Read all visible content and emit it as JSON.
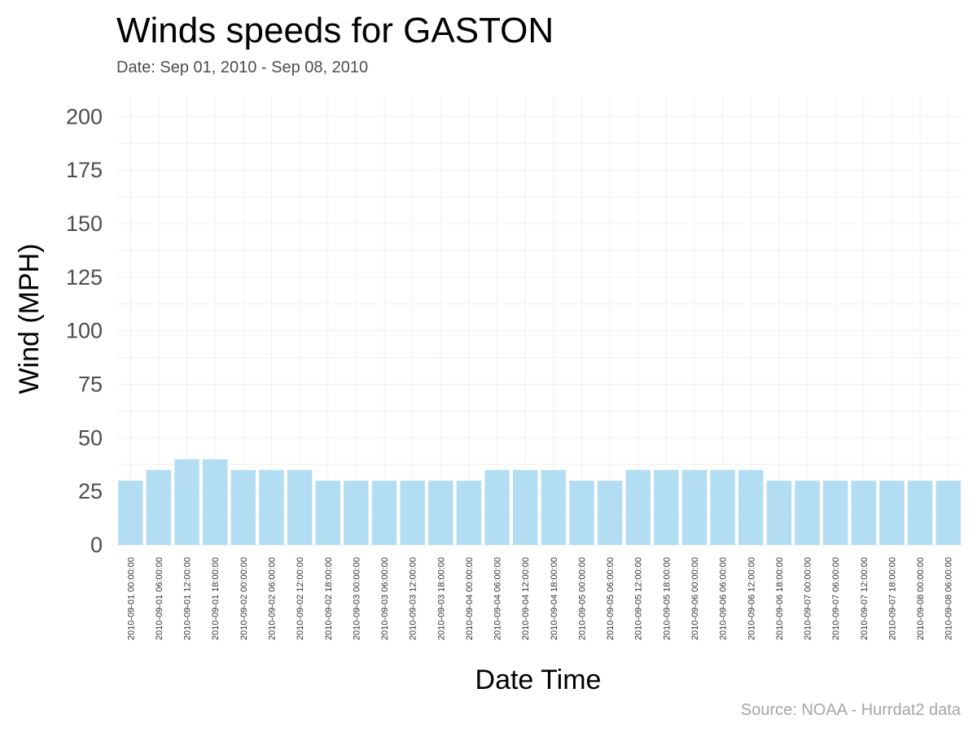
{
  "chart_data": {
    "type": "bar",
    "title": "Winds speeds for GASTON",
    "subtitle": "Date:  Sep 01, 2010 - Sep 08, 2010",
    "xlabel": "Date Time",
    "ylabel": "Wind (MPH)",
    "caption": "Source: NOAA - Hurrdat2 data",
    "ylim": [
      0,
      210
    ],
    "yticks": [
      0,
      25,
      50,
      75,
      100,
      125,
      150,
      175,
      200
    ],
    "grid": true,
    "bar_color": "#b3ddf2",
    "categories": [
      "2010-09-01 00:00:00",
      "2010-09-01 06:00:00",
      "2010-09-01 12:00:00",
      "2010-09-01 18:00:00",
      "2010-09-02 00:00:00",
      "2010-09-02 06:00:00",
      "2010-09-02 12:00:00",
      "2010-09-02 18:00:00",
      "2010-09-03 00:00:00",
      "2010-09-03 06:00:00",
      "2010-09-03 12:00:00",
      "2010-09-03 18:00:00",
      "2010-09-04 00:00:00",
      "2010-09-04 06:00:00",
      "2010-09-04 12:00:00",
      "2010-09-04 18:00:00",
      "2010-09-05 00:00:00",
      "2010-09-05 06:00:00",
      "2010-09-05 12:00:00",
      "2010-09-05 18:00:00",
      "2010-09-06 00:00:00",
      "2010-09-06 06:00:00",
      "2010-09-06 12:00:00",
      "2010-09-06 18:00:00",
      "2010-09-07 00:00:00",
      "2010-09-07 06:00:00",
      "2010-09-07 12:00:00",
      "2010-09-07 18:00:00",
      "2010-09-08 00:00:00",
      "2010-09-08 06:00:00"
    ],
    "values": [
      30,
      35,
      40,
      40,
      35,
      35,
      35,
      30,
      30,
      30,
      30,
      30,
      30,
      35,
      35,
      35,
      30,
      30,
      35,
      35,
      35,
      35,
      35,
      30,
      30,
      30,
      30,
      30,
      30,
      30
    ]
  }
}
